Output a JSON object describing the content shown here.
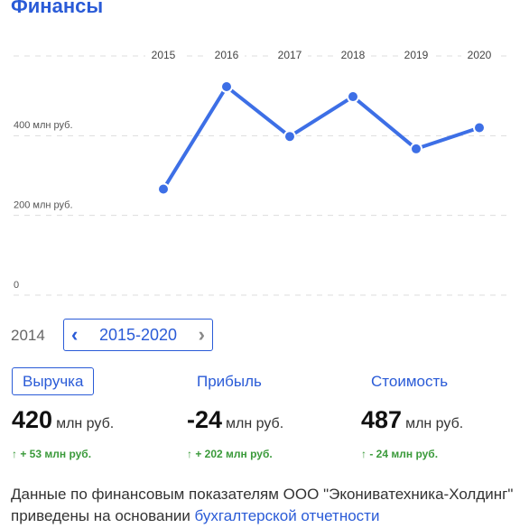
{
  "header": {
    "title": "Финансы"
  },
  "chart_data": {
    "type": "line",
    "categories": [
      "2015",
      "2016",
      "2017",
      "2018",
      "2019",
      "2020"
    ],
    "values": [
      266,
      523,
      398,
      498,
      367,
      420
    ],
    "color": "#3d6fe6",
    "ylim": [
      0,
      600
    ],
    "yticks": [
      0,
      {
        "value": 200,
        "label": "200 млн руб."
      },
      {
        "value": 400,
        "label": "400 млн руб."
      }
    ],
    "grid": true
  },
  "period": {
    "previous": "2014",
    "range": "2015-2020"
  },
  "metrics": [
    {
      "label": "Выручка",
      "value": "420",
      "unit": "млн руб.",
      "change": "+ 53 млн руб."
    },
    {
      "label": "Прибыль",
      "value": "-24",
      "unit": "млн руб.",
      "change": "+ 202 млн руб."
    },
    {
      "label": "Стоимость",
      "value": "487",
      "unit": "млн руб.",
      "change": "- 24 млн руб."
    }
  ],
  "footer": {
    "text": "Данные по финансовым показателям ООО \"Экониватехника-Холдинг\" приведены на основании ",
    "link": "бухгалтерской отчетности"
  }
}
